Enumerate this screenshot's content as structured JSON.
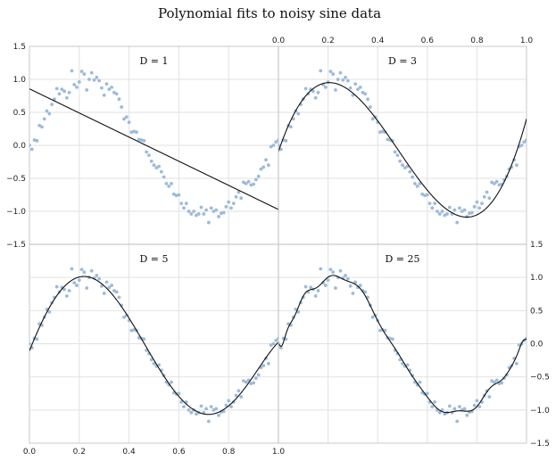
{
  "title": "Polynomial fits to noisy sine data",
  "chart_data": {
    "type": "scatter",
    "title": "Polynomial fits to noisy sine data",
    "xlim": [
      0,
      1
    ],
    "ylim": [
      -1.5,
      1.5
    ],
    "x_ticks": [
      "0.0",
      "0.2",
      "0.4",
      "0.6",
      "0.8",
      "1.0"
    ],
    "y_ticks": [
      "−1.5",
      "−1.0",
      "−0.5",
      "0.0",
      "0.5",
      "1.0",
      "1.5"
    ],
    "grid": true,
    "noisy_data": {
      "x": [
        0.0,
        0.01,
        0.02,
        0.03,
        0.04,
        0.05,
        0.06,
        0.07,
        0.08,
        0.09,
        0.1,
        0.11,
        0.12,
        0.13,
        0.14,
        0.15,
        0.16,
        0.17,
        0.18,
        0.19,
        0.2,
        0.21,
        0.22,
        0.23,
        0.24,
        0.25,
        0.26,
        0.27,
        0.28,
        0.29,
        0.3,
        0.31,
        0.32,
        0.33,
        0.34,
        0.35,
        0.36,
        0.37,
        0.38,
        0.39,
        0.4,
        0.41,
        0.42,
        0.43,
        0.44,
        0.45,
        0.46,
        0.47,
        0.48,
        0.49,
        0.5,
        0.51,
        0.52,
        0.53,
        0.54,
        0.55,
        0.56,
        0.57,
        0.58,
        0.59,
        0.6,
        0.61,
        0.62,
        0.63,
        0.64,
        0.65,
        0.66,
        0.67,
        0.68,
        0.69,
        0.7,
        0.71,
        0.72,
        0.73,
        0.74,
        0.75,
        0.76,
        0.77,
        0.78,
        0.79,
        0.8,
        0.81,
        0.82,
        0.83,
        0.84,
        0.85,
        0.86,
        0.87,
        0.88,
        0.89,
        0.9,
        0.91,
        0.92,
        0.93,
        0.94,
        0.95,
        0.96,
        0.97,
        0.98,
        0.99,
        1.0
      ],
      "y": [
        0.0,
        -0.06,
        0.08,
        0.07,
        0.3,
        0.28,
        0.4,
        0.52,
        0.48,
        0.62,
        0.7,
        0.86,
        0.78,
        0.85,
        0.82,
        0.72,
        0.8,
        1.13,
        0.92,
        0.88,
        0.96,
        1.12,
        1.08,
        0.84,
        1.0,
        1.1,
        0.99,
        1.03,
        0.98,
        0.87,
        0.76,
        0.93,
        0.85,
        0.88,
        0.8,
        0.78,
        0.7,
        0.58,
        0.4,
        0.43,
        0.35,
        0.2,
        0.21,
        0.2,
        0.09,
        0.08,
        0.07,
        -0.1,
        -0.15,
        -0.24,
        -0.3,
        -0.34,
        -0.32,
        -0.4,
        -0.48,
        -0.58,
        -0.62,
        -0.58,
        -0.74,
        -0.76,
        -0.75,
        -0.88,
        -0.95,
        -0.88,
        -1.0,
        -1.04,
        -1.0,
        -1.06,
        -1.04,
        -0.94,
        -1.04,
        -0.98,
        -1.17,
        -0.95,
        -1.0,
        -0.98,
        -1.08,
        -1.03,
        -1.02,
        -0.93,
        -0.86,
        -0.95,
        -0.88,
        -0.78,
        -0.71,
        -0.8,
        -0.56,
        -0.58,
        -0.55,
        -0.6,
        -0.59,
        -0.52,
        -0.47,
        -0.36,
        -0.33,
        -0.22,
        -0.3,
        -0.02,
        0.0,
        0.05,
        0.08
      ]
    },
    "panels": [
      {
        "label": "D = 1",
        "degree": 1,
        "x_ticks_at": "none",
        "y_ticks_at": "left"
      },
      {
        "label": "D = 3",
        "degree": 3,
        "x_ticks_at": "top",
        "y_ticks_at": "none"
      },
      {
        "label": "D = 5",
        "degree": 5,
        "x_ticks_at": "bottom",
        "y_ticks_at": "none"
      },
      {
        "label": "D = 25",
        "degree": 25,
        "x_ticks_at": "none",
        "y_ticks_at": "right"
      }
    ]
  }
}
